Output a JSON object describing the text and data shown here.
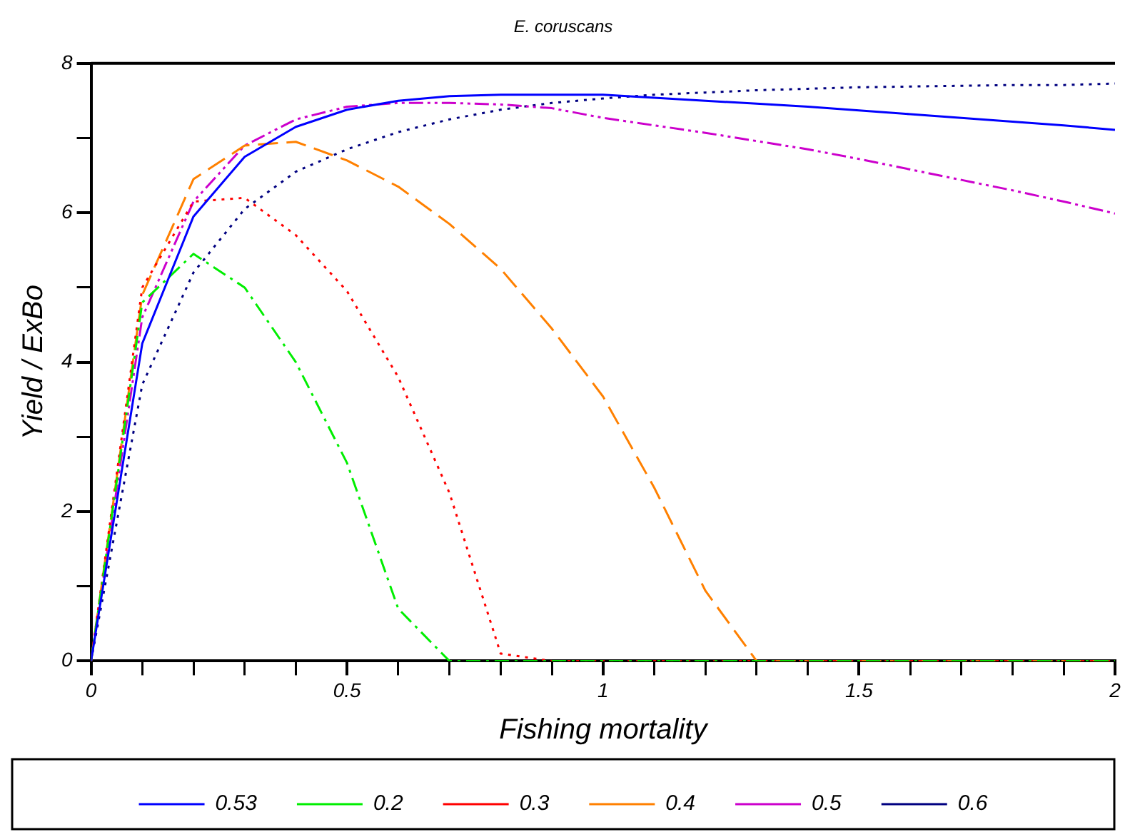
{
  "chart_data": {
    "type": "line",
    "title": "E. coruscans",
    "xlabel": "Fishing mortality",
    "ylabel": "Yield / ExBo",
    "x": [
      0,
      0.1,
      0.2,
      0.3,
      0.4,
      0.5,
      0.6,
      0.7,
      0.8,
      0.9,
      1.0,
      1.1,
      1.2,
      1.3,
      1.4,
      1.5,
      1.6,
      1.7,
      1.8,
      1.9,
      2.0
    ],
    "series": [
      {
        "name": "0.53",
        "color": "#0000ff",
        "line_style": "solid",
        "values": [
          0,
          4.25,
          5.95,
          6.75,
          7.15,
          7.38,
          7.5,
          7.56,
          7.58,
          7.58,
          7.58,
          7.54,
          7.5,
          7.46,
          7.42,
          7.37,
          7.32,
          7.27,
          7.22,
          7.17,
          7.11
        ]
      },
      {
        "name": "0.2",
        "color": "#00ee00",
        "line_style": "dashdot",
        "values": [
          0,
          4.8,
          5.45,
          5.0,
          4.0,
          2.65,
          0.7,
          0,
          0,
          0,
          0,
          0,
          0,
          0,
          0,
          0,
          0,
          0,
          0,
          0,
          0
        ]
      },
      {
        "name": "0.3",
        "color": "#ff0000",
        "line_style": "dotted",
        "values": [
          0,
          5.0,
          6.15,
          6.2,
          5.7,
          4.95,
          3.8,
          2.25,
          0.1,
          0,
          0,
          0,
          0,
          0,
          0,
          0,
          0,
          0,
          0,
          0,
          0
        ]
      },
      {
        "name": "0.4",
        "color": "#ff8000",
        "line_style": "dashed",
        "values": [
          0,
          4.9,
          6.45,
          6.9,
          6.95,
          6.7,
          6.35,
          5.85,
          5.25,
          4.45,
          3.54,
          2.32,
          0.94,
          0,
          0,
          0,
          0,
          0,
          0,
          0,
          0
        ]
      },
      {
        "name": "0.5",
        "color": "#cc00cc",
        "line_style": "dashdotdot",
        "values": [
          0,
          4.6,
          6.15,
          6.9,
          7.25,
          7.42,
          7.47,
          7.47,
          7.45,
          7.4,
          7.27,
          7.17,
          7.07,
          6.96,
          6.85,
          6.72,
          6.58,
          6.44,
          6.3,
          6.15,
          5.99
        ]
      },
      {
        "name": "0.6",
        "color": "#000080",
        "line_style": "dotted",
        "values": [
          0,
          3.7,
          5.2,
          6.05,
          6.55,
          6.85,
          7.08,
          7.25,
          7.38,
          7.47,
          7.53,
          7.58,
          7.61,
          7.64,
          7.66,
          7.68,
          7.69,
          7.7,
          7.71,
          7.71,
          7.73
        ]
      }
    ],
    "xlim": [
      0,
      2
    ],
    "xticks": [
      0,
      {
        "value": 0.1,
        "label": null
      },
      {
        "value": 0.2,
        "label": null
      },
      {
        "value": 0.3,
        "label": null
      },
      {
        "value": 0.4,
        "label": null
      },
      0.5,
      {
        "value": 0.6,
        "label": null
      },
      {
        "value": 0.7,
        "label": null
      },
      {
        "value": 0.8,
        "label": null
      },
      {
        "value": 0.9,
        "label": null
      },
      1,
      {
        "value": 1.1,
        "label": null
      },
      {
        "value": 1.2,
        "label": null
      },
      {
        "value": 1.3,
        "label": null
      },
      {
        "value": 1.4,
        "label": null
      },
      1.5,
      {
        "value": 1.6,
        "label": null
      },
      {
        "value": 1.7,
        "label": null
      },
      {
        "value": 1.8,
        "label": null
      },
      {
        "value": 1.9,
        "label": null
      },
      2
    ],
    "ylim": [
      0,
      8
    ],
    "yticks": [
      0,
      {
        "value": 1,
        "label": null
      },
      2,
      {
        "value": 3,
        "label": null
      },
      4,
      {
        "value": 5,
        "label": null
      },
      6,
      {
        "value": 7,
        "label": null
      },
      8
    ],
    "grid": false,
    "legend": "bottom",
    "marker": "none"
  }
}
